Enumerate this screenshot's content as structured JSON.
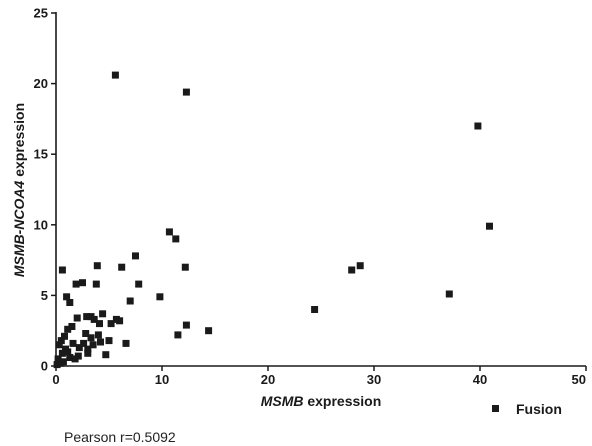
{
  "chart_data": {
    "type": "scatter",
    "xlabel_prefix": "MSMB",
    "xlabel_suffix": " expression",
    "ylabel_prefix": "MSMB-NCOA4",
    "ylabel_suffix": " expression",
    "xlim": [
      0,
      50
    ],
    "ylim": [
      0,
      25
    ],
    "x_ticks": [
      0,
      10,
      20,
      30,
      40,
      50
    ],
    "y_ticks": [
      0,
      5,
      10,
      15,
      20,
      25
    ],
    "x_tick_labels": [
      "0",
      "10",
      "20",
      "30",
      "40",
      "50"
    ],
    "y_tick_labels": [
      "0",
      "5",
      "10",
      "15",
      "20",
      "25"
    ],
    "grid": false,
    "legend_position": "bottom-right",
    "marker": "square",
    "marker_color": "#1a1a1a",
    "annotation": "Pearson r=0.5092",
    "series": [
      {
        "name": "Fusion",
        "points": [
          [
            5.6,
            20.6
          ],
          [
            12.3,
            19.4
          ],
          [
            39.8,
            17.0
          ],
          [
            40.9,
            9.9
          ],
          [
            10.7,
            9.5
          ],
          [
            11.3,
            9.0
          ],
          [
            7.5,
            7.8
          ],
          [
            6.2,
            7.0
          ],
          [
            12.2,
            7.0
          ],
          [
            3.9,
            7.1
          ],
          [
            0.6,
            6.8
          ],
          [
            28.7,
            7.1
          ],
          [
            27.9,
            6.8
          ],
          [
            37.1,
            5.1
          ],
          [
            24.4,
            4.0
          ],
          [
            2.5,
            5.9
          ],
          [
            1.9,
            5.8
          ],
          [
            3.8,
            5.8
          ],
          [
            7.8,
            5.8
          ],
          [
            1.0,
            4.9
          ],
          [
            9.8,
            4.9
          ],
          [
            7.0,
            4.6
          ],
          [
            1.3,
            4.5
          ],
          [
            5.7,
            3.3
          ],
          [
            6.0,
            3.2
          ],
          [
            5.2,
            3.0
          ],
          [
            12.3,
            2.9
          ],
          [
            14.4,
            2.5
          ],
          [
            11.5,
            2.2
          ],
          [
            2.9,
            3.5
          ],
          [
            3.3,
            3.5
          ],
          [
            3.6,
            3.3
          ],
          [
            4.4,
            3.7
          ],
          [
            4.1,
            3.0
          ],
          [
            4.0,
            2.2
          ],
          [
            3.3,
            2.0
          ],
          [
            2.8,
            2.3
          ],
          [
            2.0,
            3.4
          ],
          [
            1.5,
            2.8
          ],
          [
            1.1,
            2.6
          ],
          [
            0.8,
            2.1
          ],
          [
            0.5,
            1.8
          ],
          [
            0.3,
            1.5
          ],
          [
            0.9,
            1.2
          ],
          [
            1.6,
            1.6
          ],
          [
            2.2,
            1.3
          ],
          [
            2.6,
            1.6
          ],
          [
            3.0,
            1.2
          ],
          [
            3.5,
            1.5
          ],
          [
            4.2,
            1.7
          ],
          [
            5.0,
            1.8
          ],
          [
            6.6,
            1.6
          ],
          [
            4.7,
            0.8
          ],
          [
            3.0,
            0.9
          ],
          [
            2.1,
            0.7
          ],
          [
            1.3,
            0.6
          ],
          [
            0.6,
            0.9
          ],
          [
            0.2,
            0.5
          ],
          [
            0.4,
            0.2
          ],
          [
            0.1,
            0.1
          ],
          [
            0.7,
            0.3
          ],
          [
            1.1,
            1.0
          ],
          [
            1.8,
            0.5
          ]
        ]
      }
    ]
  }
}
